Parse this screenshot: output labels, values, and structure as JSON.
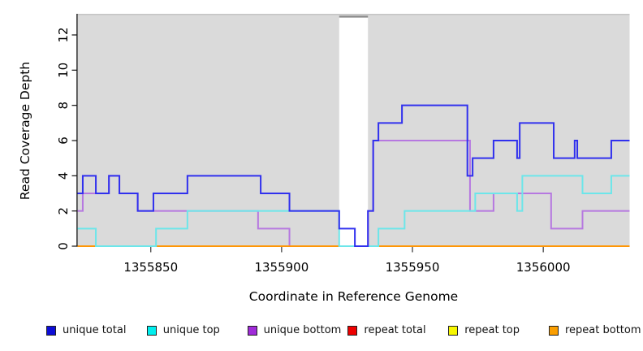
{
  "chart_data": {
    "type": "line",
    "subtype": "step-coverage",
    "title": "",
    "xlabel": "Coordinate in Reference Genome",
    "ylabel": "Read Coverage Depth",
    "xlim": [
      1355822,
      1356033
    ],
    "ylim": [
      0,
      13.2
    ],
    "x_ticks": [
      1355850,
      1355900,
      1355950,
      1356000
    ],
    "y_ticks": [
      0,
      2,
      4,
      6,
      8,
      10,
      12
    ],
    "grid": false,
    "legend_position": "bottom",
    "plot_background": "#DADADA",
    "uncovered_region": {
      "from": 1355922,
      "to": 1355933
    },
    "series": [
      {
        "name": "unique total",
        "line_color": "#3030EE",
        "swatch_color": "#0D0DD6",
        "x_end": 1356033,
        "steps": [
          [
            1355822,
            3
          ],
          [
            1355824,
            4
          ],
          [
            1355829,
            3
          ],
          [
            1355834,
            4
          ],
          [
            1355838,
            3
          ],
          [
            1355845,
            2
          ],
          [
            1355851,
            3
          ],
          [
            1355864,
            4
          ],
          [
            1355892,
            3
          ],
          [
            1355903,
            2
          ],
          [
            1355922,
            1
          ],
          [
            1355928,
            0
          ],
          [
            1355933,
            2
          ],
          [
            1355935,
            6
          ],
          [
            1355937,
            7
          ],
          [
            1355946,
            8
          ],
          [
            1355971,
            4
          ],
          [
            1355973,
            5
          ],
          [
            1355981,
            6
          ],
          [
            1355990,
            5
          ],
          [
            1355991,
            7
          ],
          [
            1356004,
            5
          ],
          [
            1356012,
            6
          ],
          [
            1356013,
            5
          ],
          [
            1356026,
            6
          ]
        ]
      },
      {
        "name": "unique top",
        "line_color": "#6CE6EA",
        "swatch_color": "#00EEEE",
        "x_end": 1356033,
        "steps": [
          [
            1355822,
            1
          ],
          [
            1355829,
            0
          ],
          [
            1355852,
            1
          ],
          [
            1355864,
            2
          ],
          [
            1355922,
            0
          ],
          [
            1355937,
            1
          ],
          [
            1355947,
            2
          ],
          [
            1355974,
            3
          ],
          [
            1355990,
            2
          ],
          [
            1355992,
            4
          ],
          [
            1356015,
            3
          ],
          [
            1356026,
            4
          ]
        ]
      },
      {
        "name": "unique bottom",
        "line_color": "#B678E0",
        "swatch_color": "#A02BD9",
        "x_end": 1356033,
        "steps": [
          [
            1355822,
            2
          ],
          [
            1355824,
            3
          ],
          [
            1355834,
            4
          ],
          [
            1355838,
            3
          ],
          [
            1355845,
            2
          ],
          [
            1355891,
            1
          ],
          [
            1355903,
            0
          ],
          [
            1355933,
            2
          ],
          [
            1355935,
            6
          ],
          [
            1355972,
            2
          ],
          [
            1355981,
            3
          ],
          [
            1356003,
            1
          ],
          [
            1356015,
            2
          ]
        ]
      },
      {
        "name": "repeat total",
        "line_color": "#E63030",
        "swatch_color": "#EE0000",
        "x_end": 1356033,
        "steps": [
          [
            1355822,
            0
          ]
        ]
      },
      {
        "name": "repeat top",
        "line_color": "#F2F200",
        "swatch_color": "#F7F700",
        "x_end": 1356033,
        "steps": [
          [
            1355822,
            0
          ]
        ]
      },
      {
        "name": "repeat bottom",
        "line_color": "#FF9606",
        "swatch_color": "#FA9E00",
        "x_end": 1356033,
        "steps": [
          [
            1355822,
            0
          ]
        ]
      }
    ]
  }
}
